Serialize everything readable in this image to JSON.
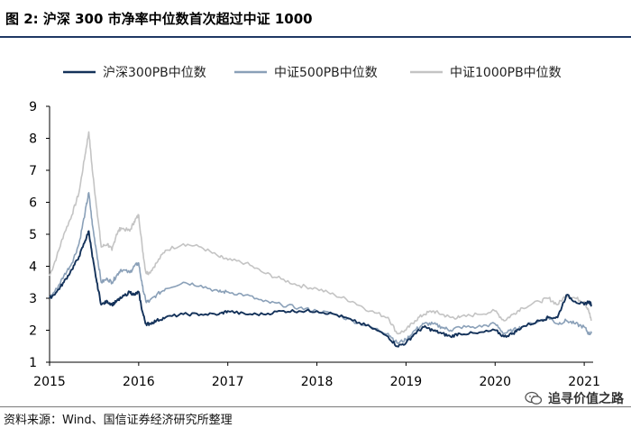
{
  "figure": {
    "title": "图 2:  沪深 300 市净率中位数首次超过中证 1000",
    "source": "资料来源：Wind、国信证券经济研究所整理",
    "watermark": "追寻价值之路"
  },
  "chart_data": {
    "type": "line",
    "title": "图 2:  沪深 300 市净率中位数首次超过中证 1000",
    "xlabel": "",
    "ylabel": "",
    "xlim": [
      2015.0,
      2021.1
    ],
    "ylim": [
      1,
      9
    ],
    "xticks": [
      2015,
      2016,
      2017,
      2018,
      2019,
      2020,
      2021
    ],
    "xtick_labels": [
      "2015",
      "2016",
      "2017",
      "2018",
      "2019",
      "2020",
      "2021"
    ],
    "yticks": [
      1,
      2,
      3,
      4,
      5,
      6,
      7,
      8,
      9
    ],
    "ytick_labels": [
      "1",
      "2",
      "3",
      "4",
      "5",
      "6",
      "7",
      "8",
      "9"
    ],
    "grid": false,
    "legend_position": "top",
    "series": [
      {
        "name": "中证1000PB中位数",
        "color": "#c4c4c4",
        "x": [
          2015.0,
          2015.08,
          2015.16,
          2015.25,
          2015.33,
          2015.4,
          2015.44,
          2015.48,
          2015.53,
          2015.58,
          2015.65,
          2015.7,
          2015.75,
          2015.8,
          2015.9,
          2015.95,
          2016.0,
          2016.04,
          2016.08,
          2016.12,
          2016.2,
          2016.3,
          2016.5,
          2016.7,
          2016.9,
          2017.0,
          2017.2,
          2017.4,
          2017.6,
          2017.8,
          2018.0,
          2018.2,
          2018.4,
          2018.6,
          2018.8,
          2018.9,
          2019.0,
          2019.1,
          2019.2,
          2019.3,
          2019.4,
          2019.5,
          2019.6,
          2019.8,
          2020.0,
          2020.1,
          2020.2,
          2020.3,
          2020.5,
          2020.6,
          2020.7,
          2020.8,
          2020.9,
          2021.0,
          2021.05,
          2021.08
        ],
        "y": [
          3.7,
          4.3,
          5.0,
          5.6,
          6.3,
          7.5,
          8.2,
          7.0,
          5.8,
          4.6,
          4.7,
          4.5,
          5.0,
          5.2,
          5.1,
          5.4,
          5.6,
          4.6,
          3.8,
          3.8,
          4.1,
          4.5,
          4.7,
          4.6,
          4.3,
          4.2,
          4.1,
          3.8,
          3.6,
          3.4,
          3.3,
          3.1,
          2.9,
          2.6,
          2.4,
          1.9,
          2.0,
          2.3,
          2.5,
          2.6,
          2.5,
          2.4,
          2.4,
          2.5,
          2.6,
          2.3,
          2.5,
          2.7,
          2.9,
          3.0,
          2.8,
          3.1,
          3.0,
          2.9,
          2.6,
          2.3
        ]
      },
      {
        "name": "中证500PB中位数",
        "color": "#8aa0b8",
        "x": [
          2015.0,
          2015.08,
          2015.16,
          2015.25,
          2015.33,
          2015.4,
          2015.44,
          2015.48,
          2015.53,
          2015.58,
          2015.65,
          2015.7,
          2015.75,
          2015.8,
          2015.9,
          2015.95,
          2016.0,
          2016.04,
          2016.08,
          2016.12,
          2016.2,
          2016.3,
          2016.5,
          2016.7,
          2016.9,
          2017.0,
          2017.2,
          2017.4,
          2017.6,
          2017.8,
          2018.0,
          2018.2,
          2018.4,
          2018.6,
          2018.8,
          2018.9,
          2019.0,
          2019.1,
          2019.2,
          2019.3,
          2019.4,
          2019.5,
          2019.6,
          2019.8,
          2020.0,
          2020.1,
          2020.2,
          2020.3,
          2020.5,
          2020.6,
          2020.7,
          2020.8,
          2020.9,
          2021.0,
          2021.05,
          2021.08
        ],
        "y": [
          3.0,
          3.3,
          3.7,
          4.1,
          4.7,
          5.7,
          6.3,
          5.3,
          4.4,
          3.5,
          3.6,
          3.5,
          3.7,
          3.9,
          3.8,
          4.0,
          4.1,
          3.4,
          2.9,
          2.9,
          3.1,
          3.3,
          3.5,
          3.4,
          3.2,
          3.2,
          3.1,
          2.9,
          2.8,
          2.7,
          2.6,
          2.5,
          2.3,
          2.1,
          1.9,
          1.6,
          1.7,
          2.0,
          2.2,
          2.2,
          2.1,
          2.0,
          2.1,
          2.1,
          2.2,
          1.9,
          2.0,
          2.1,
          2.3,
          2.4,
          2.2,
          2.3,
          2.2,
          2.1,
          1.9,
          1.9
        ]
      },
      {
        "name": "沪深300PB中位数",
        "color": "#14325a",
        "x": [
          2015.0,
          2015.08,
          2015.16,
          2015.25,
          2015.33,
          2015.4,
          2015.44,
          2015.48,
          2015.53,
          2015.58,
          2015.65,
          2015.7,
          2015.75,
          2015.8,
          2015.9,
          2015.95,
          2016.0,
          2016.04,
          2016.08,
          2016.12,
          2016.2,
          2016.3,
          2016.5,
          2016.7,
          2016.9,
          2017.0,
          2017.2,
          2017.4,
          2017.6,
          2017.8,
          2018.0,
          2018.2,
          2018.4,
          2018.6,
          2018.8,
          2018.9,
          2019.0,
          2019.1,
          2019.2,
          2019.3,
          2019.4,
          2019.5,
          2019.6,
          2019.8,
          2020.0,
          2020.1,
          2020.2,
          2020.3,
          2020.5,
          2020.6,
          2020.7,
          2020.8,
          2020.9,
          2021.0,
          2021.05,
          2021.08
        ],
        "y": [
          3.0,
          3.2,
          3.5,
          3.9,
          4.3,
          4.8,
          5.1,
          4.3,
          3.5,
          2.8,
          2.9,
          2.8,
          2.9,
          3.0,
          3.2,
          3.1,
          3.2,
          2.6,
          2.2,
          2.2,
          2.3,
          2.4,
          2.5,
          2.5,
          2.5,
          2.6,
          2.5,
          2.5,
          2.6,
          2.6,
          2.6,
          2.5,
          2.3,
          2.1,
          1.8,
          1.5,
          1.6,
          1.9,
          2.1,
          2.0,
          1.9,
          1.8,
          1.9,
          1.9,
          2.0,
          1.8,
          1.9,
          2.1,
          2.3,
          2.4,
          2.4,
          3.1,
          2.9,
          2.8,
          2.9,
          2.8
        ]
      }
    ]
  }
}
